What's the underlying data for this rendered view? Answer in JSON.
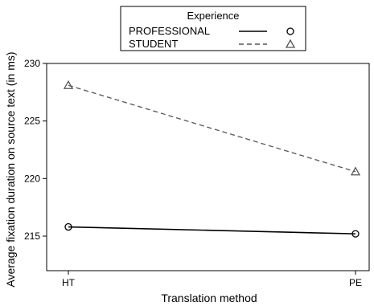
{
  "chart_data": {
    "type": "line",
    "categories": [
      "HT",
      "PE"
    ],
    "series": [
      {
        "name": "PROFESSIONAL",
        "values": [
          215.8,
          215.2
        ],
        "color": "#000000",
        "line_style": "solid",
        "marker": "circle"
      },
      {
        "name": "STUDENT",
        "values": [
          228.1,
          220.6
        ],
        "color": "#555555",
        "line_style": "dashed",
        "marker": "triangle"
      }
    ],
    "title": "",
    "xlabel": "Translation method",
    "ylabel": "Average fixation duration on source text (in ms)",
    "ylim": [
      211.5,
      230
    ],
    "yticks": [
      215,
      220,
      225,
      230
    ],
    "grid": false,
    "legend": {
      "title": "Experience",
      "position": "top-center",
      "orientation": "vertical"
    }
  }
}
